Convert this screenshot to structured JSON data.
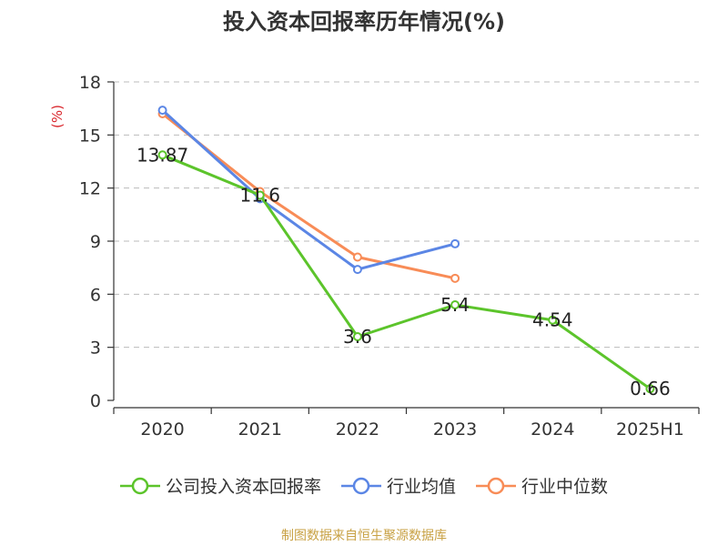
{
  "title": "投入资本回报率历年情况(%)",
  "source": "制图数据来自恒生聚源数据库",
  "colors": {
    "company": "#5cc42b",
    "industry_avg": "#5b86e5",
    "industry_median": "#f88c57",
    "axis_unit": "#d9262c",
    "source": "#c8a144",
    "grid": "#bbbbbb",
    "text": "#333333"
  },
  "chart_data": {
    "type": "line",
    "title": "投入资本回报率历年情况(%)",
    "ylabel": "(%)",
    "xlabel": "",
    "ylim": [
      0,
      18
    ],
    "yticks": [
      0,
      3,
      6,
      9,
      12,
      15,
      18
    ],
    "grid": true,
    "legend_position": "bottom",
    "categories": [
      "2020",
      "2021",
      "2022",
      "2023",
      "2024",
      "2025H1"
    ],
    "series": [
      {
        "name": "公司投入资本回报率",
        "color": "#5cc42b",
        "values": [
          13.87,
          11.6,
          3.6,
          5.4,
          4.54,
          0.66
        ],
        "labels": true
      },
      {
        "name": "行业均值",
        "color": "#5b86e5",
        "values": [
          16.4,
          11.4,
          7.4,
          8.85,
          null,
          null
        ],
        "labels": false
      },
      {
        "name": "行业中位数",
        "color": "#f88c57",
        "values": [
          16.2,
          11.8,
          8.1,
          6.9,
          null,
          null
        ],
        "labels": false
      }
    ]
  }
}
